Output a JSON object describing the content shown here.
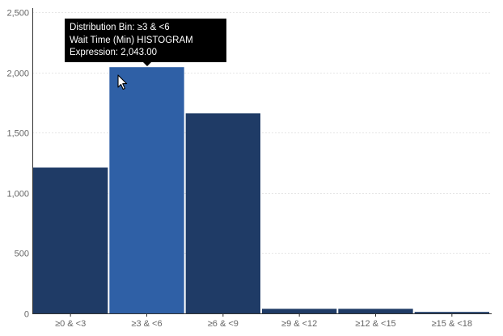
{
  "chart_data": {
    "type": "bar",
    "categories": [
      "≥0 & <3",
      "≥3 & <6",
      "≥6 & <9",
      "≥9 & <12",
      "≥12 & <15",
      "≥15 & <18"
    ],
    "values": [
      1210,
      2043,
      1660,
      38,
      38,
      12
    ],
    "ylim": [
      0,
      2500
    ],
    "yticks": [
      0,
      500,
      1000,
      1500,
      2000,
      2500
    ],
    "ytick_labels": [
      "0",
      "500",
      "1,000",
      "1,500",
      "2,000",
      "2,500"
    ],
    "grid": true,
    "highlighted_index": 1,
    "colors": {
      "bar": "#1f3b66",
      "bar_highlight": "#2f60a6",
      "bar_separator": "#ffffff"
    }
  },
  "tooltip": {
    "line1": "Distribution Bin: ≥3 & <6",
    "line2": "Wait Time (Min) HISTOGRAM",
    "line3": "Expression: 2,043.00"
  },
  "cursor_icon": "arrow-pointer-icon"
}
